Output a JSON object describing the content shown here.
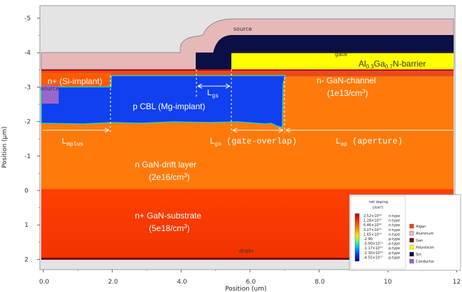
{
  "axes": {
    "xlabel": "Position (um)",
    "ylabel": "Position (µm)",
    "x_ticks": [
      "0.0",
      "2.0",
      "4.0",
      "6.0",
      "8.0",
      "10",
      "12"
    ],
    "y_ticks": [
      "-5",
      "-4",
      "-3",
      "-2",
      "-1",
      "0",
      "1",
      "2"
    ]
  },
  "contacts": {
    "source_top": "source",
    "source_left": "source",
    "gate": "gate",
    "drain": "drain"
  },
  "regions": {
    "barrier": "Al",
    "barrier_sub1": "0.3",
    "barrier_mid": "Ga",
    "barrier_sub2": "0.7",
    "barrier_end": "N-barrier",
    "n_implant": "n+ (Si-implant)",
    "p_cbl": "p CBL (Mg-implant)",
    "channel_line1": "n- GaN-channel",
    "channel_line2_pre": "(1e13/cm",
    "channel_line2_sup": "3",
    "channel_line2_post": ")",
    "drift_line1": "n GaN-drift layer",
    "drift_line2_pre": "(2e16/cm",
    "drift_line2_sup": "3",
    "drift_line2_post": ")",
    "substrate_line1": "n+ GaN-substrate",
    "substrate_line2_pre": "(5e18/cm",
    "substrate_line2_sup": "3",
    "substrate_line2_post": ")"
  },
  "dimensions": {
    "lgs_base": "L",
    "lgs_sub": "gs",
    "lmplus_base": "L",
    "lmplus_sub": "mplus",
    "lgo_base": "L",
    "lgo_sub": "go",
    "lgo_text": " (gate-overlap)",
    "lap_base": "L",
    "lap_sub": "ap",
    "lap_text": " (aperture)"
  },
  "legend": {
    "title": "net doping",
    "unit": "(/cm³)",
    "scale": [
      {
        "value": "2.52×10¹⁹",
        "type": "n-type",
        "color": "#c80000"
      },
      {
        "value": "1.28×10¹⁸",
        "type": "n-type",
        "color": "#ff2a00"
      },
      {
        "value": "6.46×10¹⁶",
        "type": "n-type",
        "color": "#ff6a00"
      },
      {
        "value": "3.27×10¹⁵",
        "type": "n-type",
        "color": "#ffa000"
      },
      {
        "value": "1.65×10¹⁴",
        "type": "n-type",
        "color": "#ffe000"
      },
      {
        "value": "-2.90",
        "type": "p-type",
        "color": "#a0ff40"
      },
      {
        "value": "-5.90×10¹³",
        "type": "p-type",
        "color": "#20e0c0"
      },
      {
        "value": "-1.17×10¹⁵",
        "type": "p-type",
        "color": "#00a0ff"
      },
      {
        "value": "-2.30×10¹⁶",
        "type": "p-type",
        "color": "#0040ff"
      },
      {
        "value": "-4.55×10¹⁷",
        "type": "p-type",
        "color": "#0010c0"
      }
    ],
    "materials": [
      {
        "label": "Algan",
        "color": "#e84a20"
      },
      {
        "label": "Aluminum",
        "color": "#e6b8b8"
      },
      {
        "label": "Gan",
        "color": "#7a0a0a"
      },
      {
        "label": "Polysilicon",
        "color": "#ffff00"
      },
      {
        "label": "Sin",
        "color": "#101040"
      },
      {
        "label": "Conductor",
        "color": "#9966cc"
      }
    ]
  }
}
